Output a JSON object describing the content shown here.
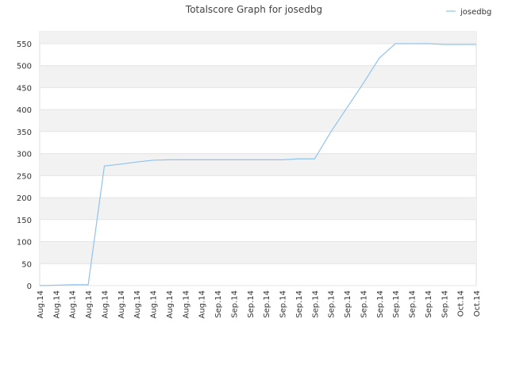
{
  "chart_data": {
    "type": "line",
    "title": "Totalscore Graph for josedbg",
    "categories": [
      "Aug.14",
      "Aug.14",
      "Aug.14",
      "Aug.14",
      "Aug.14",
      "Aug.14",
      "Aug.14",
      "Aug.14",
      "Aug.14",
      "Aug.14",
      "Aug.14",
      "Sep.14",
      "Sep.14",
      "Sep.14",
      "Sep.14",
      "Sep.14",
      "Sep.14",
      "Sep.14",
      "Sep.14",
      "Sep.14",
      "Sep.14",
      "Sep.14",
      "Sep.14",
      "Sep.14",
      "Sep.14",
      "Sep.14",
      "Oct.14",
      "Oct.14"
    ],
    "series": [
      {
        "name": "josedbg",
        "color": "#8fc3ee",
        "values": [
          0,
          1,
          2,
          2,
          272,
          276,
          281,
          285,
          286,
          286,
          286,
          286,
          286,
          286,
          286,
          286,
          288,
          288,
          349,
          404,
          459,
          517,
          550,
          550,
          550,
          548,
          548,
          548
        ]
      }
    ],
    "ylim": [
      0,
      577
    ],
    "yticks": [
      0,
      50,
      100,
      150,
      200,
      250,
      300,
      350,
      400,
      450,
      500,
      550
    ],
    "grid": true,
    "legend": "top-right"
  }
}
